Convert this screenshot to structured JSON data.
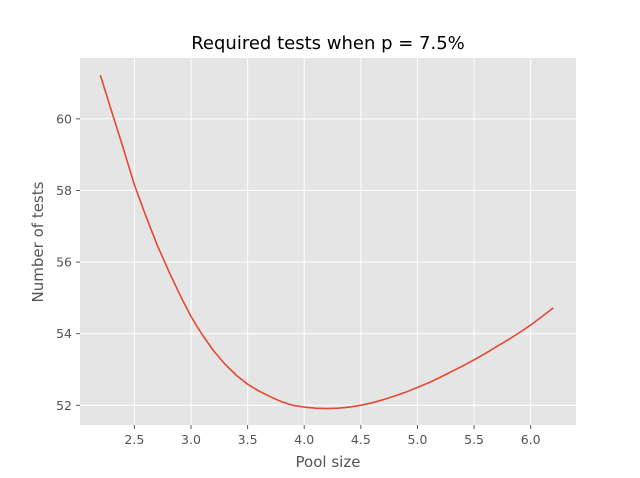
{
  "chart_data": {
    "type": "line",
    "title": "Required tests when p = 7.5%",
    "xlabel": "Pool size",
    "ylabel": "Number of tests",
    "xlim": [
      2.02,
      6.4
    ],
    "ylim": [
      51.45,
      61.7
    ],
    "x_ticks": [
      2.5,
      3.0,
      3.5,
      4.0,
      4.5,
      5.0,
      5.5,
      6.0
    ],
    "x_tick_labels": [
      "2.5",
      "3.0",
      "3.5",
      "4.0",
      "4.5",
      "5.0",
      "5.5",
      "6.0"
    ],
    "y_ticks": [
      52,
      54,
      56,
      58,
      60
    ],
    "y_tick_labels": [
      "52",
      "54",
      "56",
      "58",
      "60"
    ],
    "grid": true,
    "style": "ggplot",
    "colors": {
      "plot_background": "#e5e5e5",
      "grid": "#ffffff",
      "line": "#e24a33",
      "tick_text": "#555555"
    },
    "series": [
      {
        "color": "#e24a33",
        "x": [
          2.2,
          2.3,
          2.4,
          2.5,
          2.6,
          2.7,
          2.8,
          2.9,
          3.0,
          3.1,
          3.2,
          3.3,
          3.4,
          3.5,
          3.6,
          3.7,
          3.8,
          3.9,
          4.0,
          4.1,
          4.2,
          4.3,
          4.4,
          4.5,
          4.6,
          4.7,
          4.8,
          4.9,
          5.0,
          5.1,
          5.2,
          5.3,
          5.4,
          5.5,
          5.6,
          5.7,
          5.8,
          5.9,
          6.0,
          6.1,
          6.2
        ],
        "y": [
          61.22,
          60.2,
          59.2,
          58.16,
          57.3,
          56.49,
          55.77,
          55.1,
          54.48,
          53.97,
          53.52,
          53.15,
          52.84,
          52.59,
          52.4,
          52.24,
          52.1,
          52.0,
          51.95,
          51.92,
          51.91,
          51.92,
          51.95,
          52.0,
          52.07,
          52.16,
          52.26,
          52.37,
          52.5,
          52.63,
          52.78,
          52.94,
          53.1,
          53.27,
          53.45,
          53.64,
          53.83,
          54.03,
          54.24,
          54.48,
          54.72
        ]
      }
    ]
  }
}
